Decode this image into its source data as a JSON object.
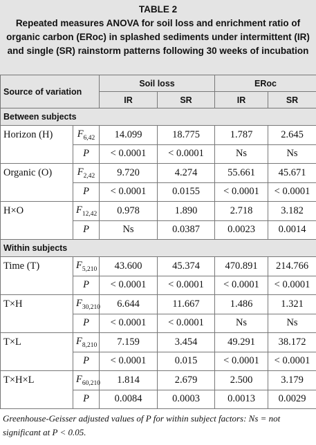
{
  "table": {
    "title": "TABLE 2",
    "caption": "Repeated measures ANOVA for soil loss and enrichment ratio of organic carbon (ERoc) in splashed sediments under intermittent (IR) and single (SR) rainstorm patterns following 30 weeks of incubation",
    "header": {
      "source": "Source of variation",
      "groups": [
        "Soil loss",
        "ERoc"
      ],
      "sub": [
        "IR",
        "SR",
        "IR",
        "SR"
      ]
    },
    "sections": [
      {
        "label": "Between subjects",
        "rows": [
          {
            "source": "Horizon (H)",
            "stat": "F",
            "df": "6,42",
            "values": [
              "14.099",
              "18.775",
              "1.787",
              "2.645"
            ]
          },
          {
            "stat": "P",
            "values": [
              "< 0.0001",
              "< 0.0001",
              "Ns",
              "Ns"
            ]
          },
          {
            "source": "Organic (O)",
            "stat": "F",
            "df": "2,42",
            "values": [
              "9.720",
              "4.274",
              "55.661",
              "45.671"
            ]
          },
          {
            "stat": "P",
            "values": [
              "< 0.0001",
              "0.0155",
              "< 0.0001",
              "< 0.0001"
            ]
          },
          {
            "source": "H×O",
            "stat": "F",
            "df": "12,42",
            "values": [
              "0.978",
              "1.890",
              "2.718",
              "3.182"
            ]
          },
          {
            "stat": "P",
            "values": [
              "Ns",
              "0.0387",
              "0.0023",
              "0.0014"
            ]
          }
        ]
      },
      {
        "label": "Within subjects",
        "rows": [
          {
            "source": "Time (T)",
            "stat": "F",
            "df": "5,210",
            "values": [
              "43.600",
              "45.374",
              "470.891",
              "214.766"
            ]
          },
          {
            "stat": "P",
            "values": [
              "< 0.0001",
              "< 0.0001",
              "< 0.0001",
              "< 0.0001"
            ]
          },
          {
            "source": "T×H",
            "stat": "F",
            "df": "30,210",
            "values": [
              "6.644",
              "11.667",
              "1.486",
              "1.321"
            ]
          },
          {
            "stat": "P",
            "values": [
              "< 0.0001",
              "< 0.0001",
              "Ns",
              "Ns"
            ]
          },
          {
            "source": "T×L",
            "stat": "F",
            "df": "8,210",
            "values": [
              "7.159",
              "3.454",
              "49.291",
              "38.172"
            ]
          },
          {
            "stat": "P",
            "values": [
              "< 0.0001",
              "0.015",
              "< 0.0001",
              "< 0.0001"
            ]
          },
          {
            "source": "T×H×L",
            "stat": "F",
            "df": "60,210",
            "values": [
              "1.814",
              "2.679",
              "2.500",
              "3.179"
            ]
          },
          {
            "stat": "P",
            "values": [
              "0.0084",
              "0.0003",
              "0.0013",
              "0.0029"
            ]
          }
        ]
      }
    ]
  },
  "footnote": "Greenhouse-Geisser adjusted values of P for within subject factors: Ns = not significant at P < 0.05."
}
